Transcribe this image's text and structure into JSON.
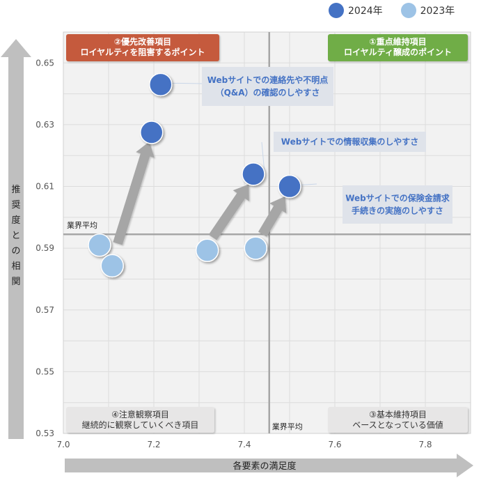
{
  "chart_data": {
    "type": "scatter",
    "legend": [
      {
        "name": "2024年",
        "color": "#4472c4"
      },
      {
        "name": "2023年",
        "color": "#9dc3e6"
      }
    ],
    "x_axis": {
      "label": "各要素の満足度",
      "min": 7.0,
      "max": 7.9,
      "ticks": [
        "7.0",
        "7.2",
        "7.4",
        "7.6",
        "7.8"
      ],
      "tick_values": [
        7.0,
        7.2,
        7.4,
        7.6,
        7.8
      ]
    },
    "y_axis": {
      "label": "推奨度との相関",
      "min": 0.53,
      "max": 0.66,
      "ticks": [
        "0.53",
        "0.55",
        "0.57",
        "0.59",
        "0.61",
        "0.63",
        "0.65"
      ],
      "tick_values": [
        0.53,
        0.55,
        0.57,
        0.59,
        0.61,
        0.63,
        0.65
      ]
    },
    "reference_lines": {
      "x": {
        "value": 7.455,
        "label": "業界平均"
      },
      "y": {
        "value": 0.5945,
        "label": "業界平均"
      }
    },
    "series": [
      {
        "name": "2024年",
        "color": "#4472c4",
        "points": [
          {
            "x": 7.215,
            "y": 0.643
          },
          {
            "x": 7.195,
            "y": 0.6275
          },
          {
            "x": 7.42,
            "y": 0.614
          },
          {
            "x": 7.5,
            "y": 0.61
          }
        ]
      },
      {
        "name": "2023年",
        "color": "#9dc3e6",
        "points": [
          {
            "x": 7.08,
            "y": 0.591
          },
          {
            "x": 7.108,
            "y": 0.5843
          },
          {
            "x": 7.318,
            "y": 0.5893
          },
          {
            "x": 7.425,
            "y": 0.59
          }
        ]
      }
    ],
    "arrows": [
      {
        "from": {
          "x": 7.12,
          "y": 0.5915
        },
        "to": {
          "x": 7.19,
          "y": 0.6245
        }
      },
      {
        "from": {
          "x": 7.33,
          "y": 0.5935
        },
        "to": {
          "x": 7.41,
          "y": 0.6107
        }
      },
      {
        "from": {
          "x": 7.44,
          "y": 0.5945
        },
        "to": {
          "x": 7.49,
          "y": 0.6068
        }
      }
    ],
    "quadrant_labels": [
      {
        "id": "q2",
        "lines": [
          "②優先改善項目",
          "ロイヤルティを阻害するポイント"
        ],
        "bg": "#c55a3c",
        "color": "#ffffff"
      },
      {
        "id": "q1",
        "lines": [
          "①重点維持項目",
          "ロイヤルティ醸成のポイント"
        ],
        "bg": "#70ad47",
        "color": "#ffffff"
      },
      {
        "id": "q4",
        "lines": [
          "④注意観察項目",
          "継続的に観察していくべき項目"
        ],
        "bg": "#e7e6e6",
        "color": "#333333"
      },
      {
        "id": "q3",
        "lines": [
          "③基本維持項目",
          "ベースとなっている価値"
        ],
        "bg": "#e7e6e6",
        "color": "#333333"
      }
    ],
    "annotations": [
      {
        "id": "a1",
        "lines": [
          "Webサイトでの連絡先や不明点",
          "（Q&A）の確認のしやすさ"
        ],
        "target": {
          "x": 7.215,
          "y": 0.643
        }
      },
      {
        "id": "a2",
        "lines": [
          "Webサイトでの情報収集のしやすさ"
        ],
        "target": {
          "x": 7.42,
          "y": 0.614
        }
      },
      {
        "id": "a3",
        "lines": [
          "Webサイトでの保険金請求",
          "手続きの実施のしやすさ"
        ],
        "target": {
          "x": 7.5,
          "y": 0.61
        }
      }
    ]
  }
}
